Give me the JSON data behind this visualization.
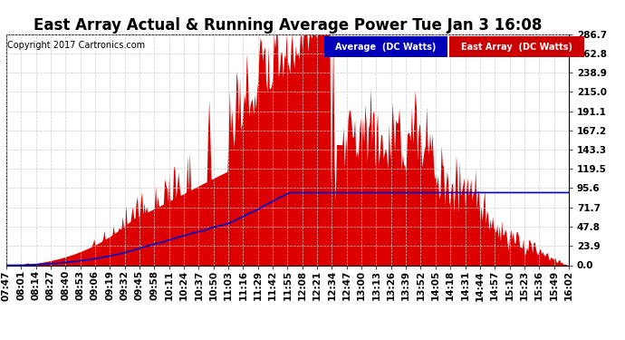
{
  "title": "East Array Actual & Running Average Power Tue Jan 3 16:08",
  "copyright": "Copyright 2017 Cartronics.com",
  "legend_labels": [
    "Average  (DC Watts)",
    "East Array  (DC Watts)"
  ],
  "legend_bg_colors": [
    "#0000bb",
    "#cc0000"
  ],
  "legend_text_color": "#ffffff",
  "y_ticks": [
    0.0,
    23.9,
    47.8,
    71.7,
    95.6,
    119.5,
    143.3,
    167.2,
    191.1,
    215.0,
    238.9,
    262.8,
    286.7
  ],
  "y_max": 286.7,
  "x_labels": [
    "07:47",
    "08:01",
    "08:14",
    "08:27",
    "08:40",
    "08:53",
    "09:06",
    "09:19",
    "09:32",
    "09:45",
    "09:58",
    "10:11",
    "10:24",
    "10:37",
    "10:50",
    "11:03",
    "11:16",
    "11:29",
    "11:42",
    "11:55",
    "12:08",
    "12:21",
    "12:34",
    "12:47",
    "13:00",
    "13:13",
    "13:26",
    "13:39",
    "13:52",
    "14:05",
    "14:18",
    "14:31",
    "14:44",
    "14:57",
    "15:10",
    "15:23",
    "15:36",
    "15:49",
    "16:02"
  ],
  "background_color": "#ffffff",
  "grid_color": "#cccccc",
  "bar_color": "#dd0000",
  "line_color": "#0000cc",
  "title_fontsize": 12,
  "copyright_fontsize": 7,
  "tick_fontsize": 7.5
}
